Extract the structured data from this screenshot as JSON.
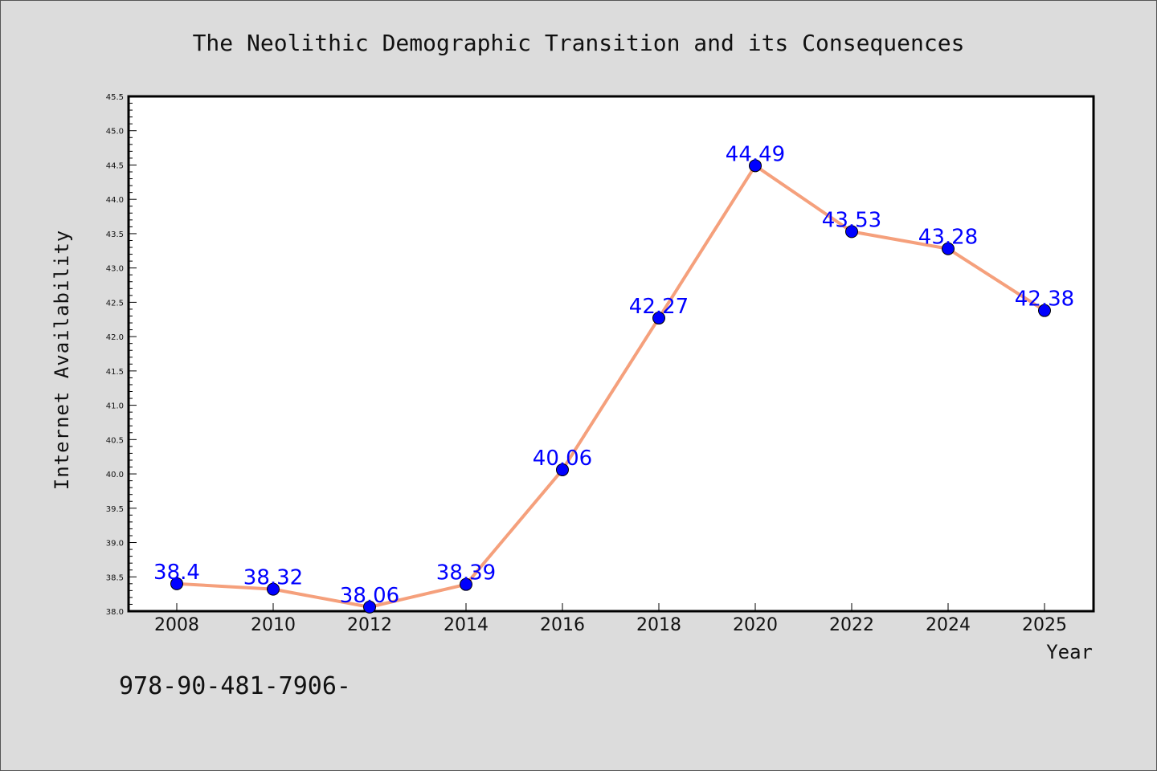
{
  "colors": {
    "background": "#dcdcdc",
    "plot_background": "#ffffff",
    "line": "#f5a07c",
    "marker": "#0000ff",
    "data_label": "#0000ff"
  },
  "footnote": "978-90-481-7906-",
  "chart_data": {
    "type": "line",
    "title": "The Neolithic Demographic Transition and its Consequences",
    "xlabel": "Year",
    "ylabel": "Internet Availability",
    "categories": [
      "2008",
      "2010",
      "2012",
      "2014",
      "2016",
      "2018",
      "2020",
      "2022",
      "2024",
      "2025"
    ],
    "series": [
      {
        "values": [
          38.4,
          38.32,
          38.06,
          38.39,
          40.06,
          42.27,
          44.49,
          43.53,
          43.28,
          42.38
        ],
        "labels": [
          "38.4",
          "38.32",
          "38.06",
          "38.39",
          "40.06",
          "42.27",
          "44.49",
          "43.53",
          "43.28",
          "42.38"
        ]
      }
    ],
    "ylim": [
      38.0,
      45.5
    ],
    "yticks": [
      "38.0",
      "38.5",
      "39.0",
      "39.5",
      "40.0",
      "40.5",
      "41.0",
      "41.5",
      "42.0",
      "42.5",
      "43.0",
      "43.5",
      "44.0",
      "44.5",
      "45.0",
      "45.5"
    ],
    "grid": false,
    "legend": "none"
  }
}
